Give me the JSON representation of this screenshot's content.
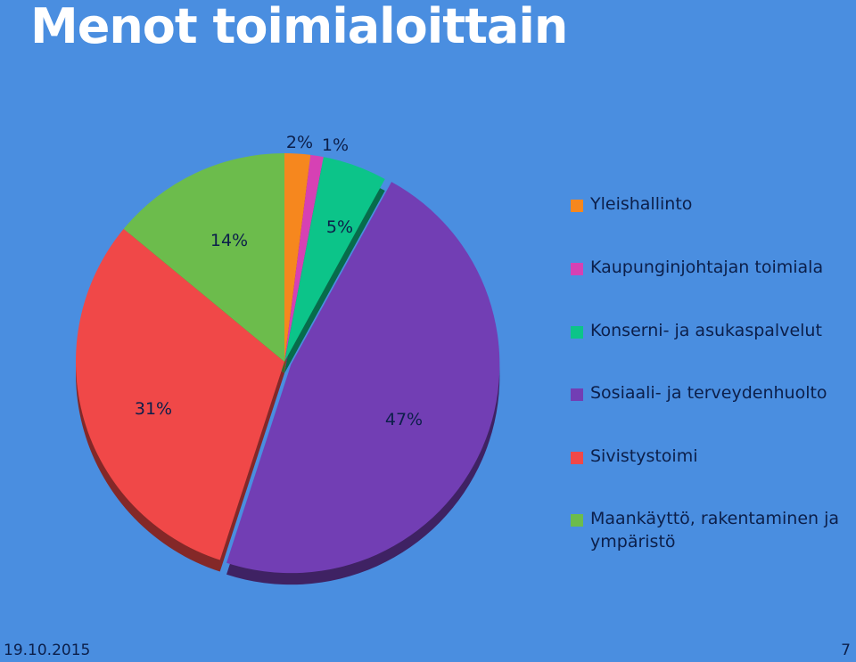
{
  "title": "Menot toimialoittain",
  "chart_data": {
    "type": "pie",
    "title": "",
    "slices": [
      {
        "name": "Yleishallinto",
        "value": 2,
        "label": "2%",
        "color": "#f6871e"
      },
      {
        "name": "Kaupunginjohtajan toimiala",
        "value": 1,
        "label": "1%",
        "color": "#d641b4"
      },
      {
        "name": "Konserni- ja asukaspalvelut",
        "value": 5,
        "label": "5%",
        "color": "#0cc489"
      },
      {
        "name": "Sosiaali- ja terveydenhuolto",
        "value": 47,
        "label": "47%",
        "color": "#723eb4"
      },
      {
        "name": "Sivistystoimi",
        "value": 31,
        "label": "31%",
        "color": "#f04848"
      },
      {
        "name": "Maankäyttö, rakentaminen ja ympäristö",
        "value": 14,
        "label": "14%",
        "color": "#6cbc4c"
      }
    ],
    "legend_position": "right"
  },
  "legend": {
    "items": [
      {
        "label": "Yleishallinto",
        "color": "#f6871e"
      },
      {
        "label": "Kaupunginjohtajan toimiala",
        "color": "#d641b4"
      },
      {
        "label": "Konserni- ja asukaspalvelut",
        "color": "#0cc489"
      },
      {
        "label": "Sosiaali- ja terveydenhuolto",
        "color": "#723eb4"
      },
      {
        "label": "Sivistystoimi",
        "color": "#f04848"
      },
      {
        "label": "Maankäyttö, rakentaminen ja ympäristö",
        "color": "#6cbc4c"
      }
    ]
  },
  "footer": {
    "date": "19.10.2015",
    "page": "7"
  }
}
